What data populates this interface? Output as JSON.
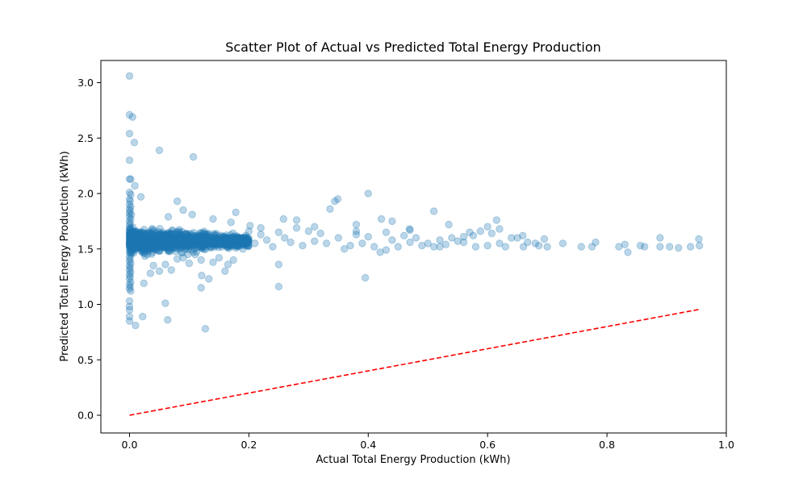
{
  "chart_data": {
    "type": "scatter",
    "title": "Scatter Plot of Actual vs Predicted Total Energy Production",
    "xlabel": "Actual Total Energy Production (kWh)",
    "ylabel": "Predicted Total Energy Production (kWh)",
    "xlim": [
      -0.048,
      1.0
    ],
    "ylim": [
      -0.16,
      3.2
    ],
    "x_ticks": [
      0.0,
      0.2,
      0.4,
      0.6,
      0.8,
      1.0
    ],
    "x_tick_labels": [
      "0.0",
      "0.2",
      "0.4",
      "0.6",
      "0.8",
      "1.0"
    ],
    "y_ticks": [
      0.0,
      0.5,
      1.0,
      1.5,
      2.0,
      2.5,
      3.0
    ],
    "y_tick_labels": [
      "0.0",
      "0.5",
      "1.0",
      "1.5",
      "2.0",
      "2.5",
      "3.0"
    ],
    "grid": false,
    "legend": null,
    "colors": {
      "points": "#1f77b4",
      "reference_line": "#ff0000"
    },
    "series": [
      {
        "kind": "points",
        "point_alpha": 0.3,
        "points": [
          [
            0.0,
            3.06
          ],
          [
            0.0,
            2.71
          ],
          [
            0.005,
            2.69
          ],
          [
            0.0,
            2.54
          ],
          [
            0.008,
            2.46
          ],
          [
            0.0,
            2.3
          ],
          [
            0.0,
            2.13
          ],
          [
            0.002,
            2.13
          ],
          [
            0.0,
            2.01
          ],
          [
            0.002,
            1.99
          ],
          [
            0.0,
            1.95
          ],
          [
            0.001,
            1.93
          ],
          [
            0.0,
            1.9
          ],
          [
            0.002,
            1.88
          ],
          [
            0.0,
            1.86
          ],
          [
            0.001,
            1.84
          ],
          [
            0.0,
            1.82
          ],
          [
            0.003,
            1.81
          ],
          [
            0.0,
            1.79
          ],
          [
            0.002,
            1.77
          ],
          [
            0.0,
            1.75
          ],
          [
            0.001,
            1.73
          ],
          [
            0.0,
            1.71
          ],
          [
            0.002,
            1.69
          ],
          [
            0.0,
            1.67
          ],
          [
            0.001,
            1.65
          ],
          [
            0.0,
            1.63
          ],
          [
            0.002,
            1.61
          ],
          [
            0.0,
            1.59
          ],
          [
            0.001,
            1.57
          ],
          [
            0.0,
            1.55
          ],
          [
            0.002,
            1.53
          ],
          [
            0.0,
            1.51
          ],
          [
            0.001,
            1.49
          ],
          [
            0.0,
            1.47
          ],
          [
            0.002,
            1.45
          ],
          [
            0.0,
            1.43
          ],
          [
            0.001,
            1.41
          ],
          [
            0.0,
            1.39
          ],
          [
            0.002,
            1.37
          ],
          [
            0.0,
            1.35
          ],
          [
            0.001,
            1.33
          ],
          [
            0.0,
            1.31
          ],
          [
            0.002,
            1.29
          ],
          [
            0.0,
            1.27
          ],
          [
            0.001,
            1.25
          ],
          [
            0.0,
            1.23
          ],
          [
            0.002,
            1.2
          ],
          [
            0.0,
            1.18
          ],
          [
            0.001,
            1.16
          ],
          [
            0.0,
            1.14
          ],
          [
            0.002,
            1.12
          ],
          [
            0.0,
            1.03
          ],
          [
            0.0,
            0.98
          ],
          [
            0.0,
            0.95
          ],
          [
            0.0,
            0.89
          ],
          [
            0.0,
            0.85
          ],
          [
            0.01,
            0.81
          ],
          [
            0.009,
            2.07
          ],
          [
            0.019,
            1.97
          ],
          [
            0.05,
            2.39
          ],
          [
            0.107,
            2.33
          ],
          [
            0.024,
            1.19
          ],
          [
            0.035,
            1.28
          ],
          [
            0.022,
            0.89
          ],
          [
            0.06,
            1.01
          ],
          [
            0.064,
            0.86
          ],
          [
            0.127,
            0.78
          ],
          [
            0.12,
            1.15
          ],
          [
            0.121,
            1.26
          ],
          [
            0.133,
            1.23
          ],
          [
            0.25,
            1.16
          ],
          [
            0.25,
            1.36
          ],
          [
            0.395,
            1.24
          ],
          [
            0.09,
            1.85
          ],
          [
            0.08,
            1.93
          ],
          [
            0.105,
            1.81
          ],
          [
            0.14,
            1.77
          ],
          [
            0.065,
            1.79
          ],
          [
            0.178,
            1.83
          ],
          [
            0.258,
            1.77
          ],
          [
            0.344,
            1.93
          ],
          [
            0.349,
            1.95
          ],
          [
            0.4,
            2.0
          ],
          [
            0.422,
            1.77
          ],
          [
            0.44,
            1.75
          ],
          [
            0.336,
            1.86
          ],
          [
            0.51,
            1.84
          ],
          [
            0.535,
            1.72
          ],
          [
            0.6,
            1.7
          ],
          [
            0.615,
            1.76
          ],
          [
            0.469,
            1.68
          ],
          [
            0.38,
            1.72
          ],
          [
            0.31,
            1.7
          ],
          [
            0.22,
            1.69
          ],
          [
            0.202,
            1.71
          ],
          [
            0.17,
            1.74
          ],
          [
            0.62,
            1.68
          ],
          [
            0.659,
            1.62
          ],
          [
            0.57,
            1.65
          ],
          [
            0.588,
            1.66
          ],
          [
            0.607,
            1.64
          ],
          [
            0.56,
            1.61
          ],
          [
            0.576,
            1.62
          ],
          [
            0.64,
            1.6
          ],
          [
            0.65,
            1.6
          ],
          [
            0.695,
            1.59
          ],
          [
            0.667,
            1.56
          ],
          [
            0.68,
            1.55
          ],
          [
            0.686,
            1.53
          ],
          [
            0.726,
            1.55
          ],
          [
            0.757,
            1.52
          ],
          [
            0.775,
            1.52
          ],
          [
            0.781,
            1.56
          ],
          [
            0.82,
            1.52
          ],
          [
            0.83,
            1.54
          ],
          [
            0.835,
            1.47
          ],
          [
            0.856,
            1.53
          ],
          [
            0.863,
            1.52
          ],
          [
            0.889,
            1.6
          ],
          [
            0.889,
            1.52
          ],
          [
            0.905,
            1.52
          ],
          [
            0.92,
            1.51
          ],
          [
            0.94,
            1.52
          ],
          [
            0.954,
            1.59
          ],
          [
            0.955,
            1.53
          ],
          [
            0.51,
            1.52
          ],
          [
            0.52,
            1.52
          ],
          [
            0.53,
            1.54
          ],
          [
            0.5,
            1.55
          ],
          [
            0.49,
            1.53
          ],
          [
            0.47,
            1.56
          ],
          [
            0.45,
            1.52
          ],
          [
            0.43,
            1.49
          ],
          [
            0.42,
            1.47
          ],
          [
            0.41,
            1.52
          ],
          [
            0.39,
            1.55
          ],
          [
            0.37,
            1.53
          ],
          [
            0.36,
            1.5
          ],
          [
            0.33,
            1.55
          ],
          [
            0.31,
            1.57
          ],
          [
            0.29,
            1.53
          ],
          [
            0.27,
            1.56
          ],
          [
            0.26,
            1.6
          ],
          [
            0.24,
            1.52
          ],
          [
            0.23,
            1.58
          ],
          [
            0.21,
            1.55
          ],
          [
            0.19,
            1.5
          ],
          [
            0.18,
            1.6
          ],
          [
            0.16,
            1.3
          ],
          [
            0.15,
            1.42
          ],
          [
            0.1,
            1.37
          ],
          [
            0.08,
            1.41
          ],
          [
            0.06,
            1.36
          ],
          [
            0.05,
            1.3
          ],
          [
            0.04,
            1.35
          ],
          [
            0.03,
            1.45
          ],
          [
            0.12,
            1.4
          ],
          [
            0.14,
            1.38
          ],
          [
            0.174,
            1.4
          ],
          [
            0.165,
            1.36
          ],
          [
            0.11,
            1.45
          ],
          [
            0.09,
            1.42
          ],
          [
            0.07,
            1.31
          ],
          [
            0.58,
            1.52
          ],
          [
            0.6,
            1.53
          ],
          [
            0.62,
            1.55
          ],
          [
            0.63,
            1.52
          ],
          [
            0.66,
            1.52
          ],
          [
            0.7,
            1.52
          ],
          [
            0.55,
            1.57
          ],
          [
            0.56,
            1.56
          ],
          [
            0.54,
            1.6
          ],
          [
            0.52,
            1.58
          ],
          [
            0.48,
            1.6
          ],
          [
            0.46,
            1.62
          ],
          [
            0.44,
            1.58
          ],
          [
            0.4,
            1.61
          ],
          [
            0.38,
            1.63
          ],
          [
            0.35,
            1.6
          ],
          [
            0.32,
            1.64
          ],
          [
            0.3,
            1.66
          ],
          [
            0.28,
            1.69
          ],
          [
            0.25,
            1.65
          ],
          [
            0.22,
            1.63
          ],
          [
            0.2,
            1.66
          ],
          [
            0.28,
            1.76
          ],
          [
            0.38,
            1.66
          ],
          [
            0.43,
            1.65
          ],
          [
            0.47,
            1.67
          ]
        ]
      },
      {
        "kind": "dense_cluster",
        "x_range": [
          0.0,
          0.2
        ],
        "y_center": 1.57,
        "y_spread": 0.1,
        "count": 1400
      },
      {
        "kind": "line",
        "style": "dashed",
        "points": [
          [
            0.0,
            0.0
          ],
          [
            0.955,
            0.955
          ]
        ]
      }
    ]
  }
}
